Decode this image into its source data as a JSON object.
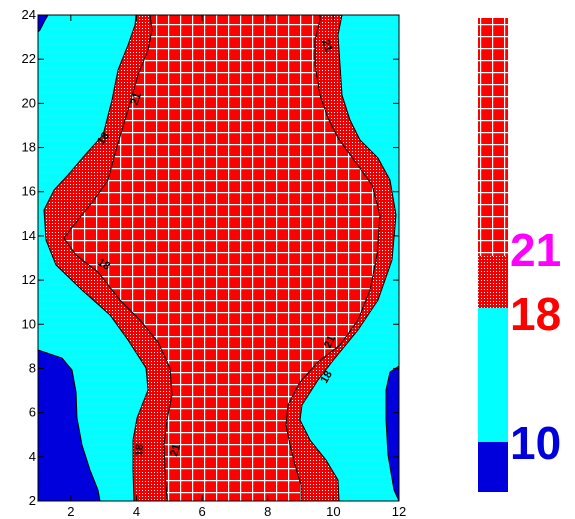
{
  "chart_data": {
    "type": "contour",
    "title": "",
    "xlabel": "",
    "ylabel": "",
    "xlim": [
      1,
      12
    ],
    "ylim": [
      2,
      24
    ],
    "x_ticks": [
      2,
      4,
      6,
      8,
      10,
      12
    ],
    "y_ticks": [
      2,
      4,
      6,
      8,
      10,
      12,
      14,
      16,
      18,
      20,
      22,
      24
    ],
    "contour_levels": [
      10,
      18,
      21
    ],
    "contour_labels": [
      {
        "text": "18",
        "x": 3.0,
        "y": 18.4,
        "angle": -55
      },
      {
        "text": "21",
        "x": 4.0,
        "y": 20.2,
        "angle": -70
      },
      {
        "text": "18",
        "x": 3.0,
        "y": 12.7,
        "angle": 30
      },
      {
        "text": "21",
        "x": 9.8,
        "y": 22.6,
        "angle": 70
      },
      {
        "text": "21",
        "x": 9.9,
        "y": 9.2,
        "angle": -65
      },
      {
        "text": "18",
        "x": 9.8,
        "y": 7.6,
        "angle": -60
      },
      {
        "text": "18",
        "x": 4.1,
        "y": 4.3,
        "angle": -85
      },
      {
        "text": "21",
        "x": 5.2,
        "y": 4.3,
        "angle": -75
      }
    ],
    "fills": {
      "below_10": "#0000dd",
      "from_10_to_18": "#00ffff",
      "from_18_to_21": "#ff0000",
      "above_21": "#ff0000"
    },
    "legend": {
      "placement": "right",
      "labels": [
        {
          "text": "21",
          "color": "#ff00ff"
        },
        {
          "text": "18",
          "color": "#ff0000"
        },
        {
          "text": "10",
          "color": "#0000dd"
        }
      ]
    }
  }
}
